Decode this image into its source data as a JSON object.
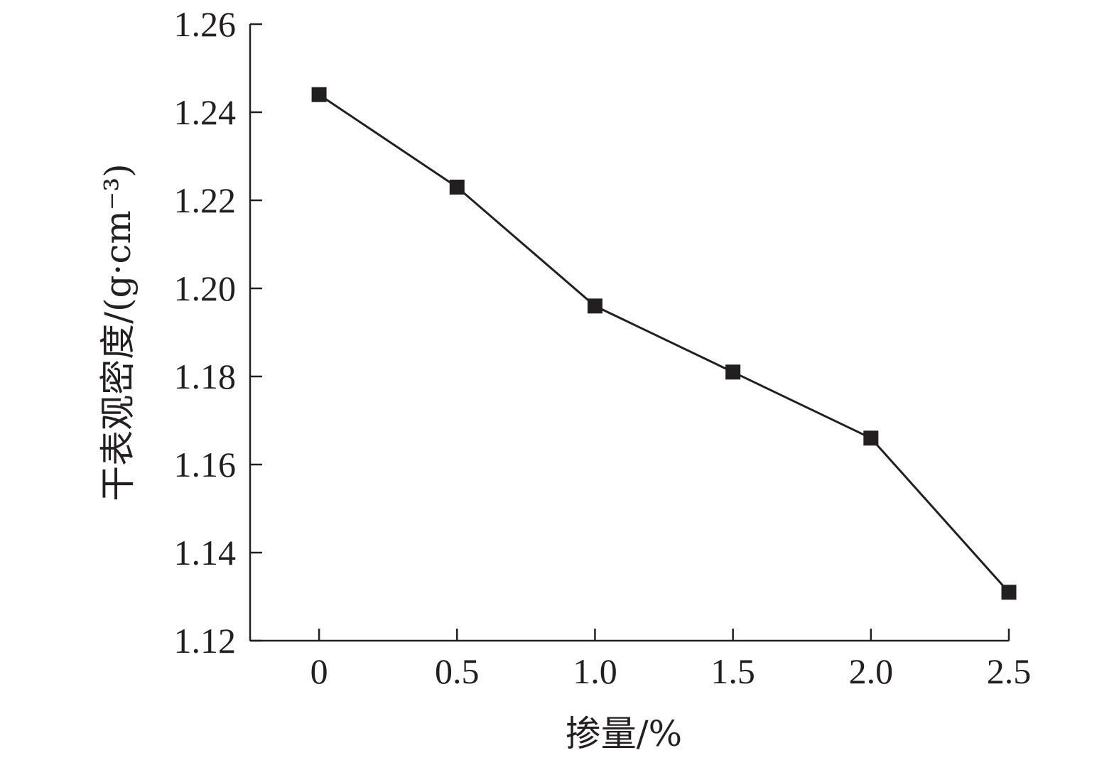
{
  "chart_data": {
    "type": "line",
    "title": "",
    "xlabel": "掺量/%",
    "ylabel": "干表观密度/(g·cm⁻³)",
    "x": [
      0,
      0.5,
      1.0,
      1.5,
      2.0,
      2.5
    ],
    "x_tick_labels": [
      "0",
      "0.5",
      "1.0",
      "1.5",
      "2.0",
      "2.5"
    ],
    "xlim": [
      -0.25,
      2.5
    ],
    "ylim": [
      1.12,
      1.26
    ],
    "y_ticks": [
      1.12,
      1.14,
      1.16,
      1.18,
      1.2,
      1.22,
      1.24,
      1.26
    ],
    "y_tick_labels": [
      "1.12",
      "1.14",
      "1.16",
      "1.18",
      "1.20",
      "1.22",
      "1.24",
      "1.26"
    ],
    "series": [
      {
        "values": [
          1.244,
          1.223,
          1.196,
          1.181,
          1.166,
          1.131
        ],
        "marker": "square",
        "color": "#231f20"
      }
    ],
    "grid": false,
    "legend": false
  }
}
